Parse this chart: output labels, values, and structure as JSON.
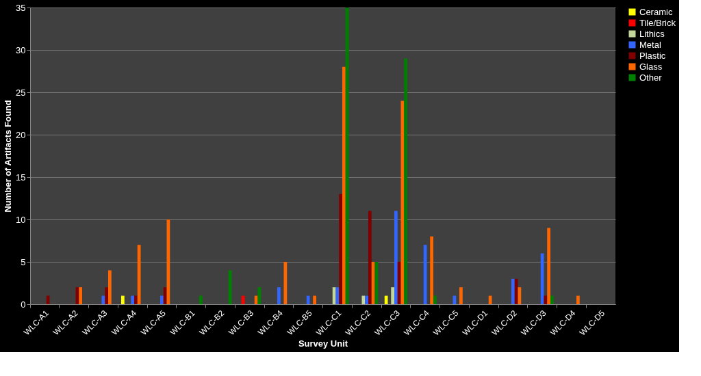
{
  "chart_data": {
    "type": "bar",
    "xlabel": "Survey Unit",
    "ylabel": "Number of Artifacts Found",
    "categories": [
      "WLC-A1",
      "WLC-A2",
      "WLC-A3",
      "WLC-A4",
      "WLC-A5",
      "WLC-B1",
      "WLC-B2",
      "WLC-B3",
      "WLC-B4",
      "WLC-B5",
      "WLC-C1",
      "WLC-C2",
      "WLC-C3",
      "WLC-C4",
      "WLC-C5",
      "WLC-D1",
      "WLC-D2",
      "WLC-D3",
      "WLC-D4",
      "WLC-D5"
    ],
    "series": [
      {
        "name": "Ceramic",
        "color": "#ffff00",
        "values": [
          null,
          null,
          null,
          1,
          null,
          null,
          null,
          null,
          null,
          null,
          null,
          null,
          1,
          null,
          null,
          null,
          null,
          null,
          null,
          null
        ]
      },
      {
        "name": "Tile/Brick",
        "color": "#ff0000",
        "values": [
          null,
          null,
          null,
          null,
          null,
          null,
          null,
          1,
          null,
          null,
          null,
          null,
          null,
          null,
          null,
          null,
          null,
          null,
          null,
          null
        ]
      },
      {
        "name": "Lithics",
        "color": "#c4d79b",
        "values": [
          null,
          null,
          null,
          null,
          null,
          null,
          null,
          null,
          null,
          null,
          2,
          1,
          2,
          null,
          null,
          null,
          null,
          null,
          null,
          null
        ]
      },
      {
        "name": "Metal",
        "color": "#3366ff",
        "values": [
          null,
          null,
          1,
          1,
          1,
          null,
          null,
          null,
          2,
          1,
          2,
          1,
          11,
          7,
          1,
          null,
          3,
          6,
          null,
          null
        ]
      },
      {
        "name": "Plastic",
        "color": "#800000",
        "values": [
          1,
          2,
          2,
          1,
          2,
          null,
          null,
          null,
          null,
          null,
          13,
          11,
          5,
          null,
          null,
          null,
          3,
          1,
          null,
          null
        ]
      },
      {
        "name": "Glass",
        "color": "#ff6600",
        "values": [
          null,
          2,
          4,
          7,
          10,
          null,
          null,
          1,
          5,
          1,
          28,
          5,
          24,
          8,
          2,
          1,
          2,
          9,
          1,
          null
        ]
      },
      {
        "name": "Other",
        "color": "#008000",
        "values": [
          null,
          null,
          null,
          null,
          null,
          1,
          4,
          2,
          null,
          null,
          35,
          5,
          29,
          1,
          null,
          null,
          null,
          1,
          null,
          null
        ]
      }
    ],
    "ylim": [
      0,
      35
    ],
    "yticks": [
      0,
      5,
      10,
      15,
      20,
      25,
      30,
      35
    ],
    "grid": "y",
    "legend": "right"
  }
}
